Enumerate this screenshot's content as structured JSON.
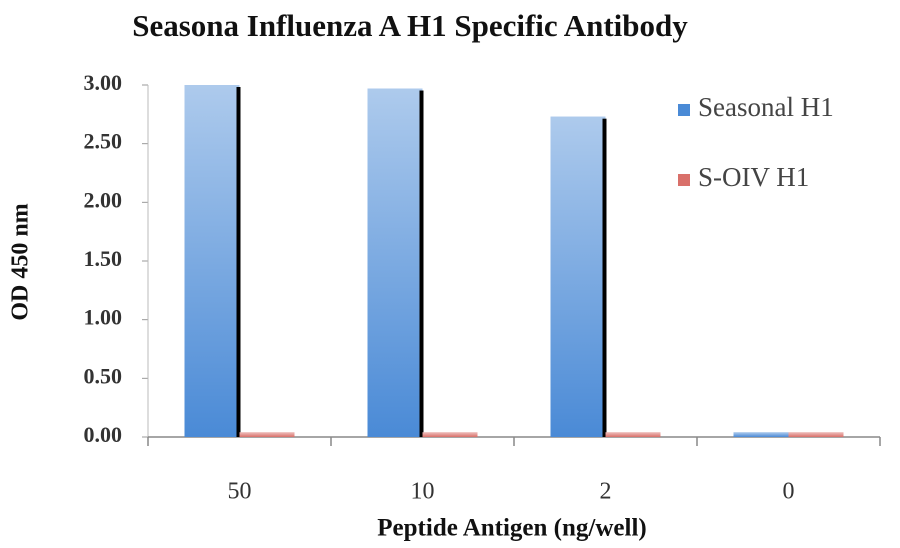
{
  "chart_data": {
    "type": "bar",
    "title": "Seasona Influenza A H1 Specific Antibody",
    "x_label": "Peptide Antigen (ng/well)",
    "y_label": "OD 450 nm",
    "categories": [
      "50",
      "10",
      "2",
      "0"
    ],
    "series": [
      {
        "name": "Seasonal H1",
        "color": "#4a8ad6",
        "values": [
          3.0,
          2.97,
          2.73,
          0.04
        ]
      },
      {
        "name": "S-OIV H1",
        "color": "#d9706a",
        "values": [
          0.04,
          0.04,
          0.04,
          0.04
        ]
      }
    ],
    "ylim": [
      0,
      3
    ],
    "yticks": [
      {
        "value": 0,
        "label": "0.00"
      },
      {
        "value": 0.5,
        "label": "0.50"
      },
      {
        "value": 1,
        "label": "1.00"
      },
      {
        "value": 1.5,
        "label": "1.50"
      },
      {
        "value": 2,
        "label": "2.00"
      },
      {
        "value": 2.5,
        "label": "2.50"
      },
      {
        "value": 3,
        "label": "3.00"
      }
    ],
    "legend": "right"
  }
}
